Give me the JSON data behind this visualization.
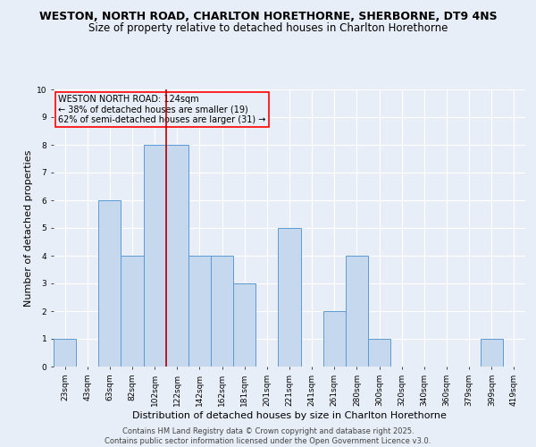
{
  "title_line1": "WESTON, NORTH ROAD, CHARLTON HORETHORNE, SHERBORNE, DT9 4NS",
  "title_line2": "Size of property relative to detached houses in Charlton Horethorne",
  "xlabel": "Distribution of detached houses by size in Charlton Horethorne",
  "ylabel": "Number of detached properties",
  "categories": [
    "23sqm",
    "43sqm",
    "63sqm",
    "82sqm",
    "102sqm",
    "122sqm",
    "142sqm",
    "162sqm",
    "181sqm",
    "201sqm",
    "221sqm",
    "241sqm",
    "261sqm",
    "280sqm",
    "300sqm",
    "320sqm",
    "340sqm",
    "360sqm",
    "379sqm",
    "399sqm",
    "419sqm"
  ],
  "values": [
    1,
    0,
    6,
    4,
    8,
    8,
    4,
    4,
    3,
    0,
    5,
    0,
    2,
    4,
    1,
    0,
    0,
    0,
    0,
    1,
    0
  ],
  "highlight_bin": 5,
  "bar_color": "#c5d8ed",
  "bar_edge_color": "#5b9bd5",
  "highlight_line_color": "#c00000",
  "ylim_max": 10,
  "yticks": [
    0,
    1,
    2,
    3,
    4,
    5,
    6,
    7,
    8,
    9,
    10
  ],
  "annotation_text": "WESTON NORTH ROAD: 124sqm\n← 38% of detached houses are smaller (19)\n62% of semi-detached houses are larger (31) →",
  "footer_text": "Contains HM Land Registry data © Crown copyright and database right 2025.\nContains public sector information licensed under the Open Government Licence v3.0.",
  "background_color": "#e8eef7",
  "grid_color": "#ffffff",
  "title_fontsize": 9,
  "subtitle_fontsize": 8.5,
  "axis_label_fontsize": 8,
  "tick_fontsize": 6.5,
  "annotation_fontsize": 7,
  "footer_fontsize": 6
}
